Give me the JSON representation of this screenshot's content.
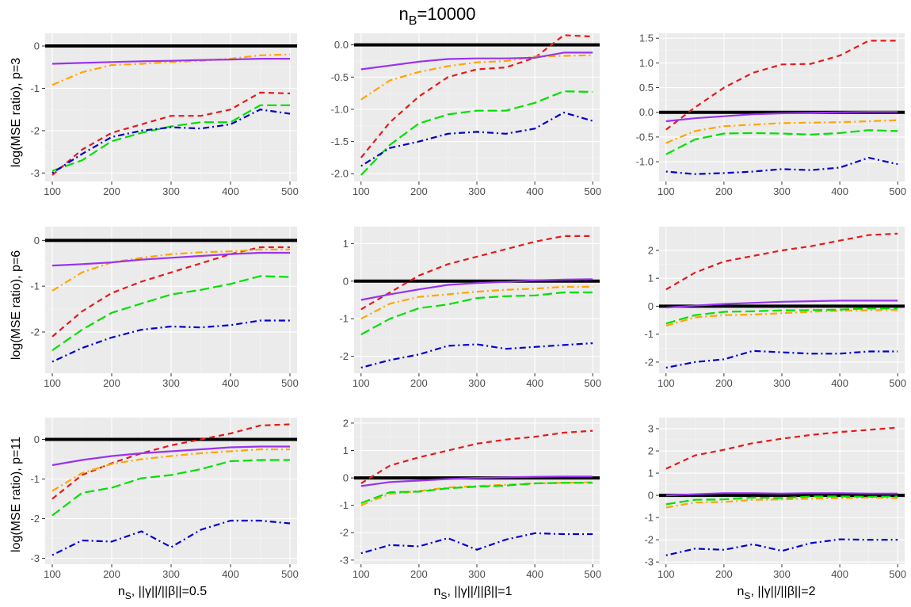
{
  "figure": {
    "title_main": "n",
    "title_sub": "B",
    "title_rest": "=10000"
  },
  "row_labels": [
    "log(MSE ratio), p=3",
    "log(MSE ratio), p=6",
    "log(MSE ratio), p=11"
  ],
  "col_labels": [
    {
      "main": "n",
      "sub": "S",
      "rest": ", ||γ||/||β||=0.5"
    },
    {
      "main": "n",
      "sub": "S",
      "rest": ", ||γ||/||β||=1"
    },
    {
      "main": "n",
      "sub": "S",
      "rest": ", ||γ||/||β||=2"
    }
  ],
  "series_styles": [
    {
      "name": "red",
      "color": "#e31a1c",
      "dash": "dashed"
    },
    {
      "name": "orange",
      "color": "#ffa500",
      "dash": "dotdash"
    },
    {
      "name": "green",
      "color": "#00e000",
      "dash": "longdash"
    },
    {
      "name": "blue",
      "color": "#0000cc",
      "dash": "dotdash-short"
    },
    {
      "name": "purple",
      "color": "#9933ee",
      "dash": "solid"
    }
  ],
  "chart_data": [
    {
      "type": "line",
      "row": 0,
      "col": 0,
      "x": [
        100,
        150,
        200,
        250,
        300,
        350,
        400,
        450,
        500
      ],
      "xticks": [
        100,
        200,
        300,
        400,
        500
      ],
      "xlim": [
        88,
        512
      ],
      "yticks": [
        0,
        -1,
        -2,
        -3
      ],
      "ylim": [
        -3.2,
        0.3
      ],
      "hline": 0,
      "series": [
        {
          "name": "red",
          "values": [
            -3.05,
            -2.45,
            -2.05,
            -1.85,
            -1.65,
            -1.65,
            -1.5,
            -1.1,
            -1.12
          ]
        },
        {
          "name": "orange",
          "values": [
            -0.92,
            -0.62,
            -0.45,
            -0.42,
            -0.38,
            -0.35,
            -0.3,
            -0.22,
            -0.2
          ]
        },
        {
          "name": "green",
          "values": [
            -2.95,
            -2.7,
            -2.25,
            -2.05,
            -1.9,
            -1.8,
            -1.8,
            -1.4,
            -1.4
          ]
        },
        {
          "name": "blue",
          "values": [
            -3.0,
            -2.55,
            -2.15,
            -2.0,
            -1.92,
            -1.95,
            -1.85,
            -1.5,
            -1.6
          ]
        },
        {
          "name": "purple",
          "values": [
            -0.42,
            -0.4,
            -0.38,
            -0.36,
            -0.35,
            -0.33,
            -0.32,
            -0.3,
            -0.3
          ]
        }
      ]
    },
    {
      "type": "line",
      "row": 0,
      "col": 1,
      "x": [
        100,
        150,
        200,
        250,
        300,
        350,
        400,
        450,
        500
      ],
      "xticks": [
        100,
        200,
        300,
        400,
        500
      ],
      "xlim": [
        88,
        512
      ],
      "yticks": [
        0.0,
        -0.5,
        -1.0,
        -1.5,
        -2.0
      ],
      "ylim": [
        -2.12,
        0.18
      ],
      "hline": 0,
      "series": [
        {
          "name": "red",
          "values": [
            -1.75,
            -1.2,
            -0.8,
            -0.5,
            -0.38,
            -0.35,
            -0.2,
            0.15,
            0.13
          ]
        },
        {
          "name": "orange",
          "values": [
            -0.85,
            -0.55,
            -0.42,
            -0.33,
            -0.27,
            -0.25,
            -0.18,
            -0.17,
            -0.16
          ]
        },
        {
          "name": "green",
          "values": [
            -2.02,
            -1.55,
            -1.22,
            -1.08,
            -1.02,
            -1.02,
            -0.9,
            -0.72,
            -0.73
          ]
        },
        {
          "name": "blue",
          "values": [
            -1.88,
            -1.6,
            -1.5,
            -1.38,
            -1.35,
            -1.38,
            -1.3,
            -1.05,
            -1.18
          ]
        },
        {
          "name": "purple",
          "values": [
            -0.38,
            -0.32,
            -0.26,
            -0.22,
            -0.21,
            -0.21,
            -0.2,
            -0.12,
            -0.12
          ]
        }
      ]
    },
    {
      "type": "line",
      "row": 0,
      "col": 2,
      "x": [
        100,
        150,
        200,
        250,
        300,
        350,
        400,
        450,
        500
      ],
      "xticks": [
        100,
        200,
        300,
        400,
        500
      ],
      "xlim": [
        88,
        512
      ],
      "yticks": [
        1.5,
        1.0,
        0.5,
        0.0,
        -0.5,
        -1.0
      ],
      "ylim": [
        -1.4,
        1.6
      ],
      "hline": 0,
      "series": [
        {
          "name": "red",
          "values": [
            -0.35,
            0.1,
            0.5,
            0.8,
            0.97,
            0.98,
            1.15,
            1.45,
            1.45
          ]
        },
        {
          "name": "orange",
          "values": [
            -0.62,
            -0.38,
            -0.28,
            -0.25,
            -0.22,
            -0.21,
            -0.2,
            -0.18,
            -0.16
          ]
        },
        {
          "name": "green",
          "values": [
            -0.85,
            -0.55,
            -0.43,
            -0.42,
            -0.43,
            -0.45,
            -0.42,
            -0.36,
            -0.38
          ]
        },
        {
          "name": "blue",
          "values": [
            -1.2,
            -1.25,
            -1.23,
            -1.2,
            -1.15,
            -1.17,
            -1.12,
            -0.92,
            -1.05
          ]
        },
        {
          "name": "purple",
          "values": [
            -0.18,
            -0.12,
            -0.08,
            -0.04,
            -0.02,
            -0.01,
            0.0,
            0.01,
            0.01
          ]
        }
      ]
    },
    {
      "type": "line",
      "row": 1,
      "col": 0,
      "x": [
        100,
        150,
        200,
        250,
        300,
        350,
        400,
        450,
        500
      ],
      "xticks": [
        100,
        200,
        300,
        400,
        500
      ],
      "xlim": [
        88,
        512
      ],
      "yticks": [
        0,
        -1,
        -2
      ],
      "ylim": [
        -2.9,
        0.3
      ],
      "hline": 0,
      "series": [
        {
          "name": "red",
          "values": [
            -2.1,
            -1.55,
            -1.15,
            -0.9,
            -0.7,
            -0.5,
            -0.3,
            -0.15,
            -0.15
          ]
        },
        {
          "name": "orange",
          "values": [
            -1.1,
            -0.7,
            -0.48,
            -0.38,
            -0.3,
            -0.26,
            -0.24,
            -0.2,
            -0.2
          ]
        },
        {
          "name": "green",
          "values": [
            -2.4,
            -1.95,
            -1.58,
            -1.38,
            -1.18,
            -1.08,
            -0.95,
            -0.78,
            -0.8
          ]
        },
        {
          "name": "blue",
          "values": [
            -2.65,
            -2.35,
            -2.12,
            -1.95,
            -1.88,
            -1.9,
            -1.85,
            -1.75,
            -1.75
          ]
        },
        {
          "name": "purple",
          "values": [
            -0.55,
            -0.52,
            -0.48,
            -0.42,
            -0.38,
            -0.34,
            -0.3,
            -0.27,
            -0.27
          ]
        }
      ]
    },
    {
      "type": "line",
      "row": 1,
      "col": 1,
      "x": [
        100,
        150,
        200,
        250,
        300,
        350,
        400,
        450,
        500
      ],
      "xticks": [
        100,
        200,
        300,
        400,
        500
      ],
      "xlim": [
        88,
        512
      ],
      "yticks": [
        1,
        0,
        -1,
        -2
      ],
      "ylim": [
        -2.45,
        1.45
      ],
      "hline": 0,
      "series": [
        {
          "name": "red",
          "values": [
            -0.75,
            -0.3,
            0.15,
            0.45,
            0.65,
            0.85,
            1.05,
            1.2,
            1.2
          ]
        },
        {
          "name": "orange",
          "values": [
            -1.0,
            -0.6,
            -0.42,
            -0.35,
            -0.28,
            -0.23,
            -0.2,
            -0.15,
            -0.15
          ]
        },
        {
          "name": "green",
          "values": [
            -1.42,
            -1.0,
            -0.72,
            -0.62,
            -0.45,
            -0.4,
            -0.38,
            -0.3,
            -0.3
          ]
        },
        {
          "name": "blue",
          "values": [
            -2.3,
            -2.1,
            -1.95,
            -1.72,
            -1.68,
            -1.8,
            -1.75,
            -1.7,
            -1.65
          ]
        },
        {
          "name": "purple",
          "values": [
            -0.5,
            -0.35,
            -0.22,
            -0.1,
            -0.05,
            -0.02,
            0.02,
            0.04,
            0.05
          ]
        }
      ]
    },
    {
      "type": "line",
      "row": 1,
      "col": 2,
      "x": [
        100,
        150,
        200,
        250,
        300,
        350,
        400,
        450,
        500
      ],
      "xticks": [
        100,
        200,
        300,
        400,
        500
      ],
      "xlim": [
        88,
        512
      ],
      "yticks": [
        2,
        1,
        0,
        -1,
        -2
      ],
      "ylim": [
        -2.4,
        2.85
      ],
      "hline": 0,
      "series": [
        {
          "name": "red",
          "values": [
            0.6,
            1.2,
            1.6,
            1.8,
            2.0,
            2.15,
            2.35,
            2.55,
            2.6
          ]
        },
        {
          "name": "orange",
          "values": [
            -0.7,
            -0.4,
            -0.32,
            -0.3,
            -0.25,
            -0.2,
            -0.16,
            -0.14,
            -0.13
          ]
        },
        {
          "name": "green",
          "values": [
            -0.62,
            -0.32,
            -0.2,
            -0.18,
            -0.15,
            -0.14,
            -0.12,
            -0.08,
            -0.08
          ]
        },
        {
          "name": "blue",
          "values": [
            -2.2,
            -2.0,
            -1.9,
            -1.6,
            -1.65,
            -1.7,
            -1.7,
            -1.62,
            -1.62
          ]
        },
        {
          "name": "purple",
          "values": [
            -0.05,
            0.02,
            0.08,
            0.12,
            0.16,
            0.18,
            0.2,
            0.2,
            0.2
          ]
        }
      ]
    },
    {
      "type": "line",
      "row": 2,
      "col": 0,
      "x": [
        100,
        150,
        200,
        250,
        300,
        350,
        400,
        450,
        500
      ],
      "xticks": [
        100,
        200,
        300,
        400,
        500
      ],
      "xlim": [
        88,
        512
      ],
      "yticks": [
        0,
        -1,
        -2,
        -3
      ],
      "ylim": [
        -3.15,
        0.55
      ],
      "hline": 0,
      "series": [
        {
          "name": "red",
          "values": [
            -1.5,
            -0.9,
            -0.6,
            -0.35,
            -0.15,
            0.0,
            0.15,
            0.35,
            0.38
          ]
        },
        {
          "name": "orange",
          "values": [
            -1.3,
            -0.85,
            -0.62,
            -0.5,
            -0.42,
            -0.35,
            -0.3,
            -0.25,
            -0.25
          ]
        },
        {
          "name": "green",
          "values": [
            -1.92,
            -1.35,
            -1.22,
            -0.98,
            -0.9,
            -0.75,
            -0.55,
            -0.52,
            -0.52
          ]
        },
        {
          "name": "blue",
          "values": [
            -2.92,
            -2.55,
            -2.58,
            -2.32,
            -2.72,
            -2.28,
            -2.05,
            -2.05,
            -2.12
          ]
        },
        {
          "name": "purple",
          "values": [
            -0.65,
            -0.52,
            -0.42,
            -0.35,
            -0.3,
            -0.25,
            -0.2,
            -0.18,
            -0.18
          ]
        }
      ]
    },
    {
      "type": "line",
      "row": 2,
      "col": 1,
      "x": [
        100,
        150,
        200,
        250,
        300,
        350,
        400,
        450,
        500
      ],
      "xticks": [
        100,
        200,
        300,
        400,
        500
      ],
      "xlim": [
        88,
        512
      ],
      "yticks": [
        2,
        1,
        0,
        -1,
        -2,
        -3
      ],
      "ylim": [
        -3.15,
        2.2
      ],
      "hline": 0,
      "series": [
        {
          "name": "red",
          "values": [
            -0.2,
            0.45,
            0.75,
            1.0,
            1.25,
            1.4,
            1.5,
            1.65,
            1.72
          ]
        },
        {
          "name": "orange",
          "values": [
            -1.0,
            -0.58,
            -0.48,
            -0.35,
            -0.3,
            -0.25,
            -0.2,
            -0.18,
            -0.16
          ]
        },
        {
          "name": "green",
          "values": [
            -0.92,
            -0.52,
            -0.5,
            -0.38,
            -0.32,
            -0.28,
            -0.2,
            -0.18,
            -0.18
          ]
        },
        {
          "name": "blue",
          "values": [
            -2.75,
            -2.45,
            -2.5,
            -2.2,
            -2.62,
            -2.25,
            -2.02,
            -2.05,
            -2.05
          ]
        },
        {
          "name": "purple",
          "values": [
            -0.3,
            -0.15,
            -0.1,
            -0.04,
            0.0,
            0.02,
            0.04,
            0.05,
            0.05
          ]
        }
      ]
    },
    {
      "type": "line",
      "row": 2,
      "col": 2,
      "x": [
        100,
        150,
        200,
        250,
        300,
        350,
        400,
        450,
        500
      ],
      "xticks": [
        100,
        200,
        300,
        400,
        500
      ],
      "xlim": [
        88,
        512
      ],
      "yticks": [
        3,
        2,
        1,
        0,
        -1,
        -2,
        -3
      ],
      "ylim": [
        -3.1,
        3.5
      ],
      "hline": 0,
      "series": [
        {
          "name": "red",
          "values": [
            1.2,
            1.8,
            2.05,
            2.35,
            2.55,
            2.72,
            2.85,
            2.95,
            3.05
          ]
        },
        {
          "name": "orange",
          "values": [
            -0.55,
            -0.32,
            -0.3,
            -0.2,
            -0.18,
            -0.15,
            -0.12,
            -0.1,
            -0.12
          ]
        },
        {
          "name": "green",
          "values": [
            -0.4,
            -0.2,
            -0.18,
            -0.1,
            -0.12,
            -0.05,
            -0.05,
            -0.06,
            -0.05
          ]
        },
        {
          "name": "blue",
          "values": [
            -2.7,
            -2.4,
            -2.45,
            -2.2,
            -2.5,
            -2.15,
            -1.98,
            -2.0,
            -2.0
          ]
        },
        {
          "name": "purple",
          "values": [
            0.0,
            0.05,
            0.1,
            0.1,
            0.08,
            0.1,
            0.1,
            0.08,
            0.08
          ]
        }
      ]
    }
  ]
}
